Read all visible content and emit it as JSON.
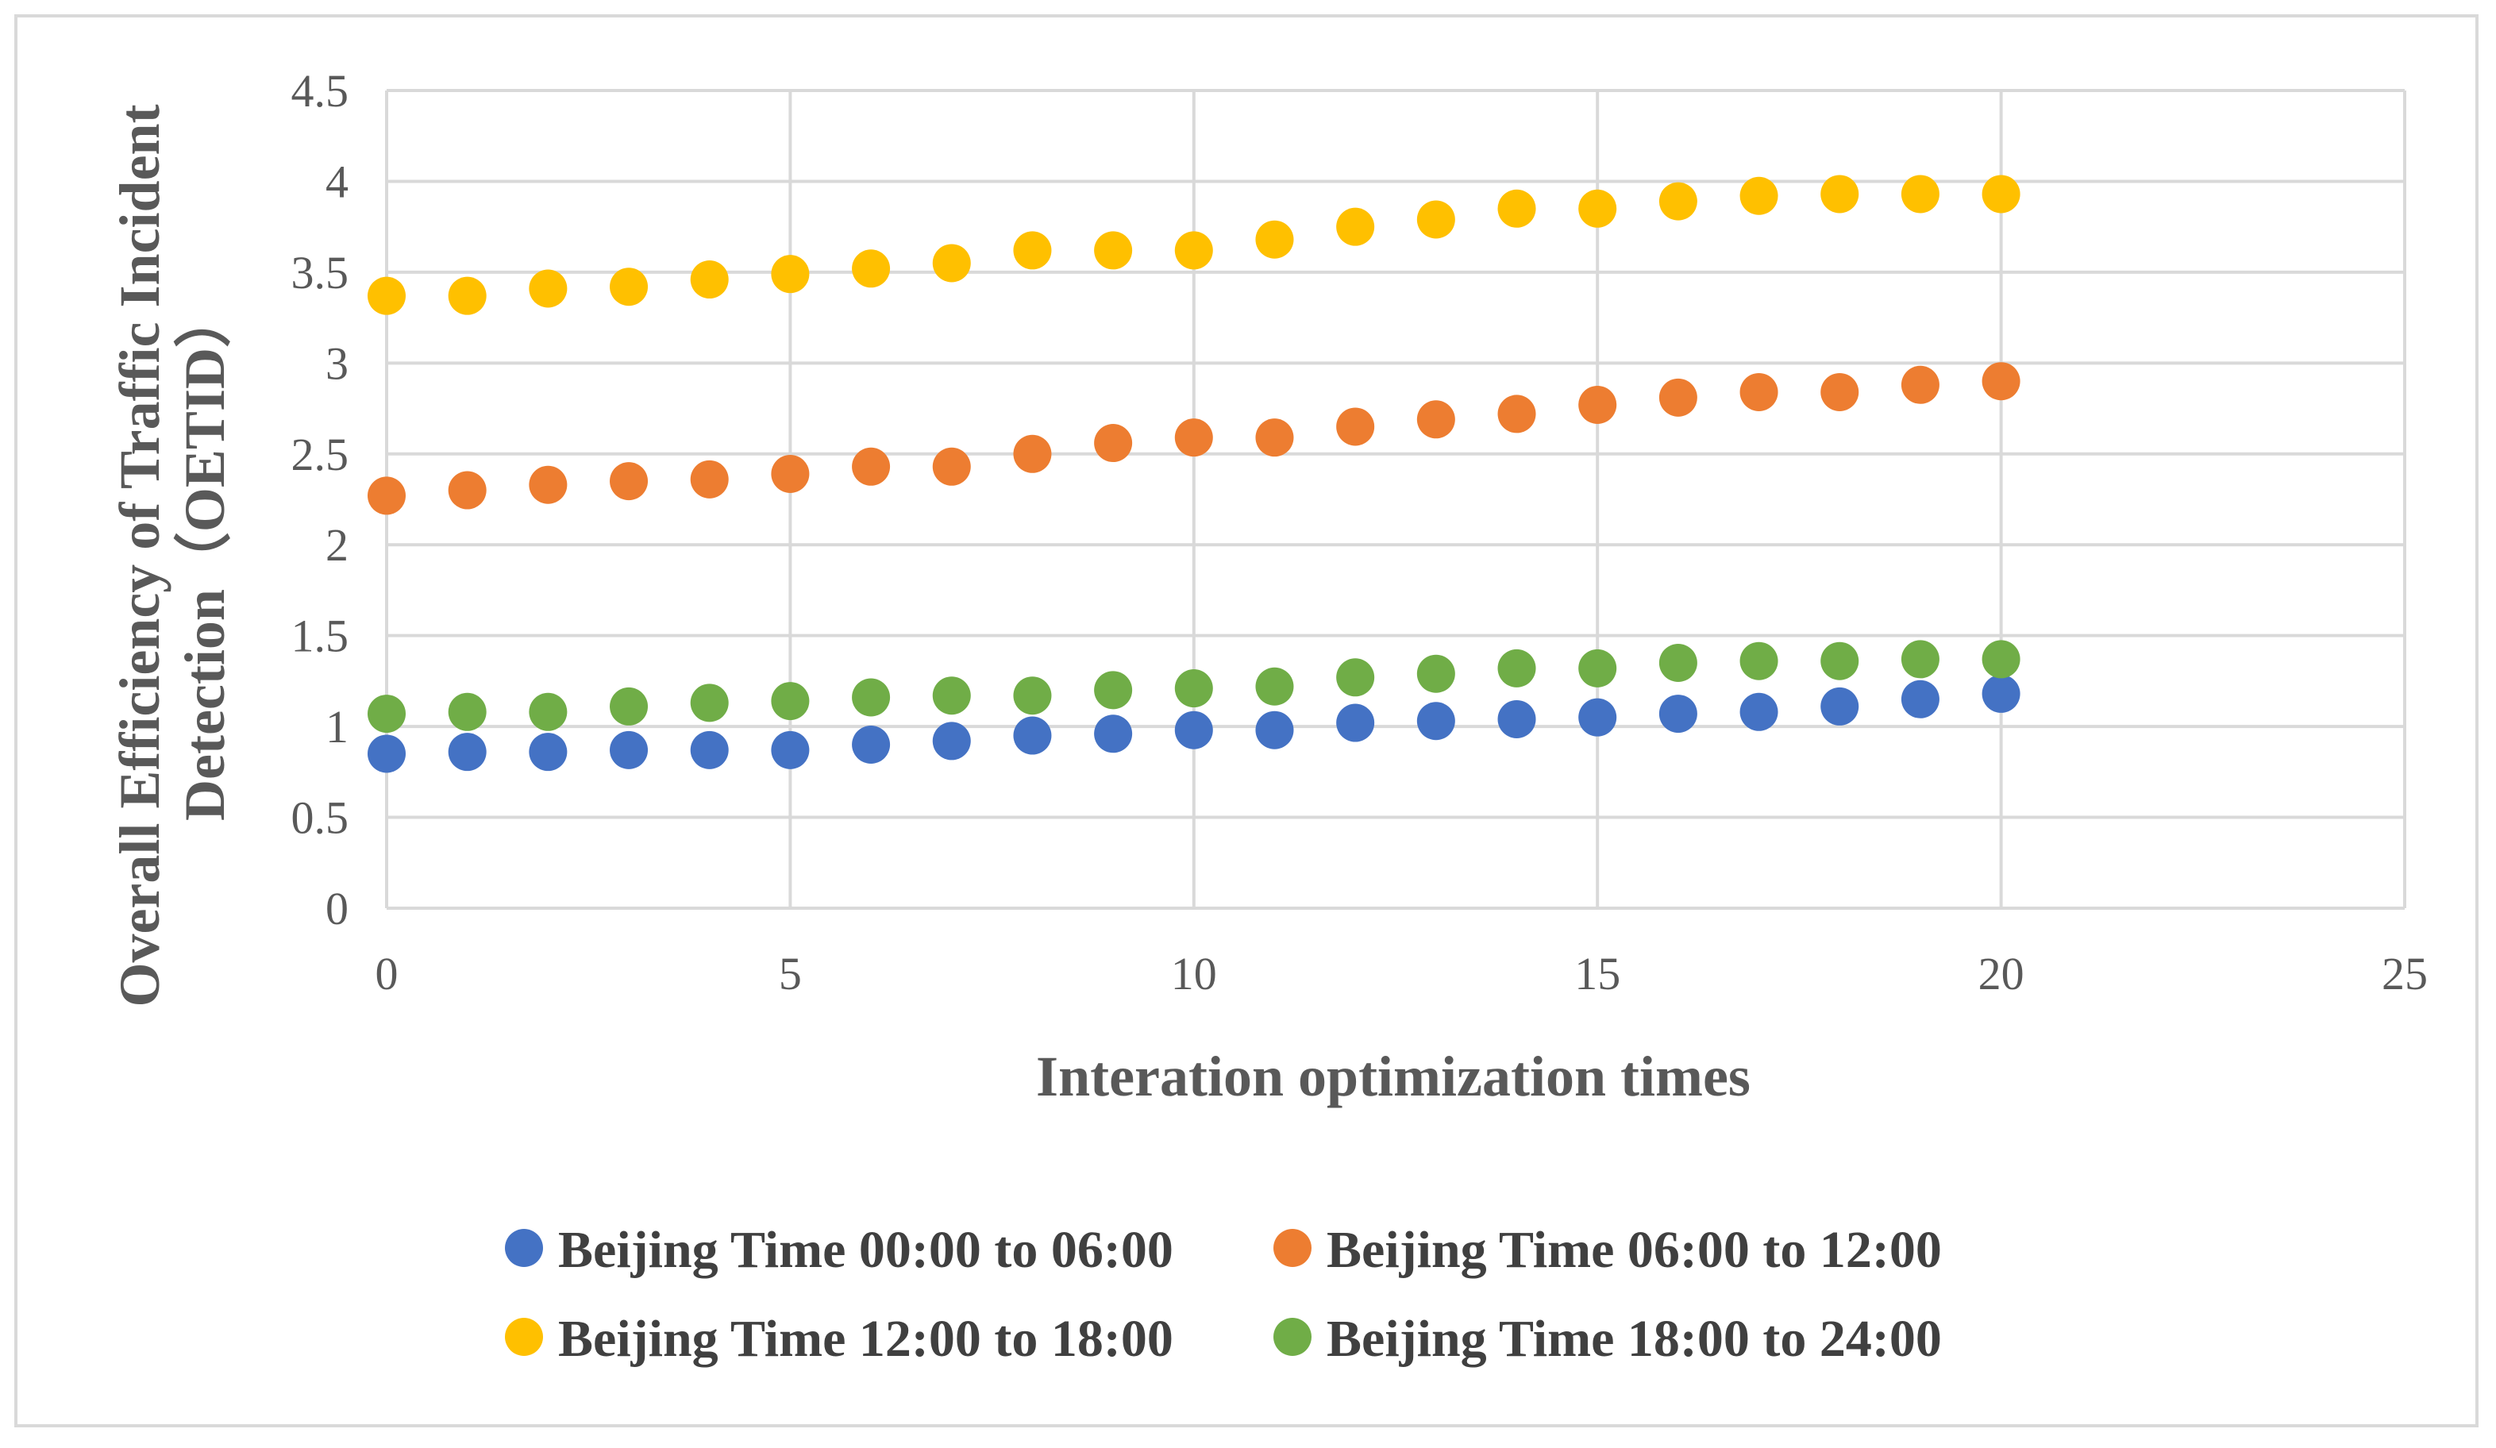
{
  "chart_data": {
    "type": "scatter",
    "title": "",
    "xlabel": "Interation optimization times",
    "ylabel_lines": [
      "Overall Efficiency of Traffic Incident",
      "Detection（OETID）"
    ],
    "xlim": [
      0,
      25
    ],
    "ylim": [
      0,
      4.5
    ],
    "x_ticks": [
      0,
      5,
      10,
      15,
      20,
      25
    ],
    "y_ticks": [
      0,
      0.5,
      1,
      1.5,
      2,
      2.5,
      3,
      3.5,
      4,
      4.5
    ],
    "x_tick_labels": [
      "0",
      "5",
      "10",
      "15",
      "20",
      "25"
    ],
    "y_tick_labels": [
      "0",
      "0.5",
      "1",
      "1.5",
      "2",
      "2.5",
      "3",
      "3.5",
      "4",
      "4.5"
    ],
    "grid": true,
    "legend_position": "bottom",
    "x": [
      0,
      1,
      2,
      3,
      4,
      5,
      6,
      7,
      8,
      9,
      10,
      11,
      12,
      13,
      14,
      15,
      16,
      17,
      18,
      19,
      20
    ],
    "series": [
      {
        "name": "Beijing Time 00:00 to 06:00",
        "color": "#4472c4",
        "values": [
          0.85,
          0.86,
          0.86,
          0.87,
          0.87,
          0.87,
          0.9,
          0.92,
          0.95,
          0.96,
          0.98,
          0.98,
          1.02,
          1.03,
          1.04,
          1.05,
          1.07,
          1.08,
          1.11,
          1.15,
          1.18
        ]
      },
      {
        "name": "Beijing Time 06:00 to 12:00",
        "color": "#ed7d31",
        "values": [
          2.27,
          2.3,
          2.33,
          2.35,
          2.36,
          2.39,
          2.43,
          2.43,
          2.5,
          2.56,
          2.59,
          2.59,
          2.65,
          2.69,
          2.72,
          2.77,
          2.81,
          2.84,
          2.84,
          2.88,
          2.9
        ]
      },
      {
        "name": "Beijing Time 12:00 to 18:00",
        "color": "#ffc000",
        "values": [
          3.37,
          3.37,
          3.41,
          3.42,
          3.46,
          3.49,
          3.52,
          3.55,
          3.62,
          3.62,
          3.62,
          3.68,
          3.75,
          3.79,
          3.85,
          3.85,
          3.89,
          3.92,
          3.93,
          3.93,
          3.93
        ]
      },
      {
        "name": "Beijing Time 18:00 to 24:00",
        "color": "#70ad47",
        "values": [
          1.07,
          1.08,
          1.08,
          1.11,
          1.13,
          1.14,
          1.16,
          1.17,
          1.17,
          1.2,
          1.21,
          1.22,
          1.27,
          1.29,
          1.32,
          1.32,
          1.35,
          1.36,
          1.36,
          1.37,
          1.37
        ]
      }
    ]
  }
}
